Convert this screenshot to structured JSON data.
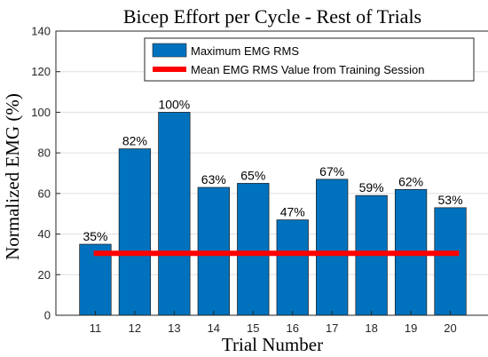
{
  "chart_data": {
    "type": "bar",
    "title": "Bicep Effort per Cycle - Rest of Trials",
    "xlabel": "Trial Number",
    "ylabel": "Normalized EMG (%)",
    "categories": [
      "11",
      "12",
      "13",
      "14",
      "15",
      "16",
      "17",
      "18",
      "19",
      "20"
    ],
    "series": [
      {
        "name": "Maximum EMG RMS",
        "values": [
          35,
          82,
          100,
          63,
          65,
          47,
          67,
          59,
          62,
          53
        ],
        "labels": [
          "35%",
          "82%",
          "100%",
          "63%",
          "65%",
          "47%",
          "67%",
          "59%",
          "62%",
          "53%"
        ],
        "color": "#0072BD"
      }
    ],
    "reference_line": {
      "name": "Mean EMG RMS Value from Training Session",
      "value": 30.5,
      "color": "#FF0000"
    },
    "ylim": [
      0,
      140
    ],
    "yticks": [
      "0",
      "20",
      "40",
      "60",
      "80",
      "100",
      "120",
      "140"
    ],
    "grid": true,
    "legend_position": "top-right"
  }
}
